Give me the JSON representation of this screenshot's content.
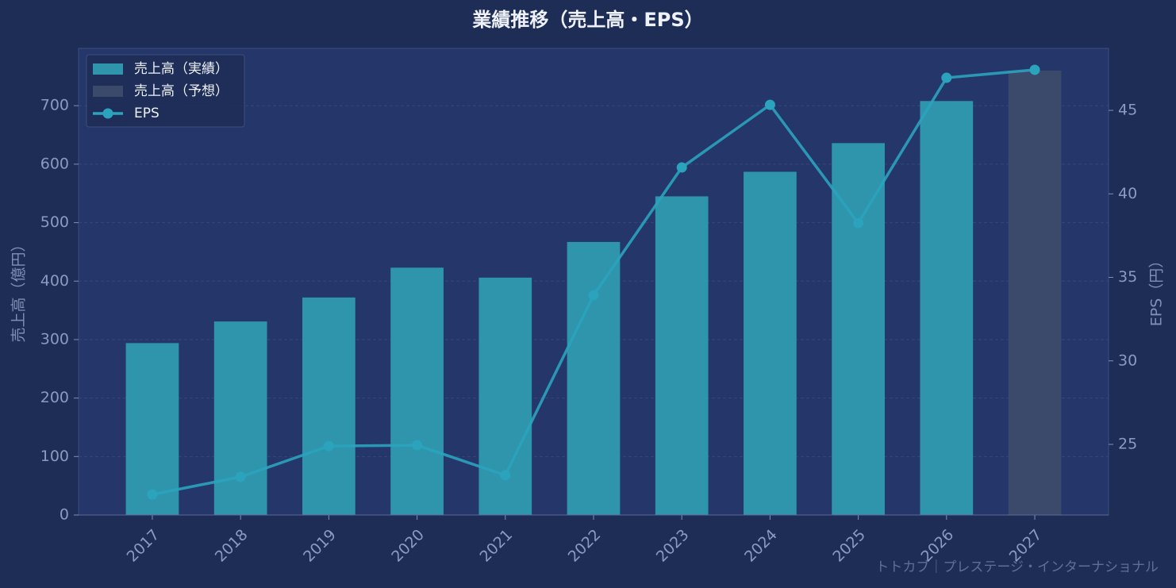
{
  "chart_data": {
    "type": "bar",
    "title": "業績推移（売上高・EPS）",
    "categories": [
      "2017",
      "2018",
      "2019",
      "2020",
      "2021",
      "2022",
      "2023",
      "2024",
      "2025",
      "2026",
      "2027"
    ],
    "series": [
      {
        "name": "売上高（実績）",
        "color": "#2e95ad",
        "values": [
          294,
          331,
          372,
          423,
          406,
          467,
          545,
          587,
          636,
          708,
          null
        ]
      },
      {
        "name": "売上高（予想）",
        "color": "#3b4a6b",
        "values": [
          null,
          null,
          null,
          null,
          null,
          null,
          null,
          null,
          null,
          null,
          760
        ]
      },
      {
        "name": "EPS",
        "type": "line",
        "axis": "y2",
        "color": "#2ba3bd",
        "values": [
          22.0,
          23.05,
          24.9,
          24.95,
          23.15,
          33.93,
          41.58,
          45.33,
          38.25,
          46.95,
          47.43
        ]
      }
    ],
    "ylabel": "売上高（億円）",
    "y2label": "EPS（円）",
    "ylim": [
      0,
      798
    ],
    "yticks": [
      0,
      100,
      200,
      300,
      400,
      500,
      600,
      700
    ],
    "y2lim": [
      20.77,
      48.71
    ],
    "y2ticks": [
      25,
      30,
      35,
      40,
      45
    ],
    "grid": true,
    "legend": "upper left",
    "watermark": "トトカブ｜プレステージ・インターナショナル"
  }
}
